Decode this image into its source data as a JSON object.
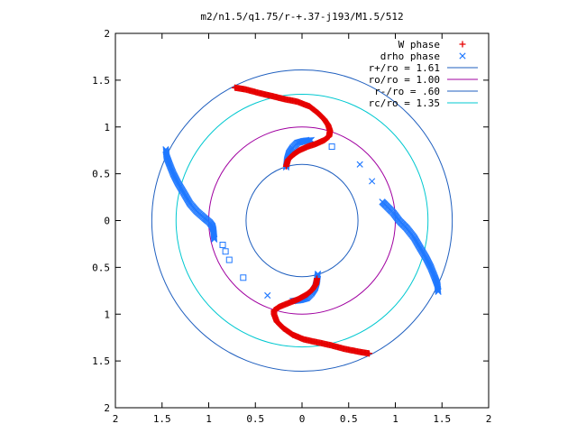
{
  "chart_data": {
    "type": "scatter",
    "title": "m2/n1.5/q1.75/r-+.37-j193/M1.5/512",
    "xlim": [
      -2,
      2
    ],
    "ylim": [
      -2,
      2
    ],
    "xticks": [
      {
        "v": -2,
        "label": "2"
      },
      {
        "v": -1.5,
        "label": "1.5"
      },
      {
        "v": -1,
        "label": "1"
      },
      {
        "v": -0.5,
        "label": "0.5"
      },
      {
        "v": 0,
        "label": "0"
      },
      {
        "v": 0.5,
        "label": "0.5"
      },
      {
        "v": 1,
        "label": "1"
      },
      {
        "v": 1.5,
        "label": "1.5"
      },
      {
        "v": 2,
        "label": "2"
      }
    ],
    "yticks": [
      {
        "v": 2,
        "label": "2"
      },
      {
        "v": 1.5,
        "label": "1.5"
      },
      {
        "v": 1,
        "label": "1"
      },
      {
        "v": 0.5,
        "label": "0.5"
      },
      {
        "v": 0,
        "label": "0"
      },
      {
        "v": -0.5,
        "label": "0.5"
      },
      {
        "v": -1,
        "label": "1"
      },
      {
        "v": -1.5,
        "label": "1.5"
      },
      {
        "v": -2,
        "label": "2"
      }
    ],
    "grid": false,
    "legend_position": "top-right",
    "circles": [
      {
        "label": "r+/ro = 1.61",
        "radius": 1.61,
        "color": "#1f5fbf"
      },
      {
        "label": "ro/ro = 1.00",
        "radius": 1.0,
        "color": "#a000a0"
      },
      {
        "label": "r-/ro = .60",
        "radius": 0.6,
        "color": "#1f5fbf"
      },
      {
        "label": "rc/ro = 1.35",
        "radius": 1.35,
        "color": "#00c8d0"
      }
    ],
    "series": [
      {
        "name": "W phase",
        "marker": "plus",
        "color": "#e60000",
        "arms": [
          [
            [
              -0.72,
              1.42
            ],
            [
              -0.6,
              1.4
            ],
            [
              -0.45,
              1.36
            ],
            [
              -0.32,
              1.33
            ],
            [
              -0.2,
              1.3
            ],
            [
              -0.05,
              1.27
            ],
            [
              0.08,
              1.22
            ],
            [
              0.17,
              1.15
            ],
            [
              0.24,
              1.08
            ],
            [
              0.28,
              1.02
            ],
            [
              0.3,
              0.96
            ],
            [
              0.29,
              0.9
            ],
            [
              0.24,
              0.86
            ],
            [
              0.15,
              0.82
            ],
            [
              0.06,
              0.79
            ],
            [
              -0.03,
              0.75
            ],
            [
              -0.1,
              0.7
            ],
            [
              -0.15,
              0.65
            ],
            [
              -0.17,
              0.58
            ]
          ],
          [
            [
              0.72,
              -1.42
            ],
            [
              0.6,
              -1.4
            ],
            [
              0.45,
              -1.37
            ],
            [
              0.3,
              -1.33
            ],
            [
              0.16,
              -1.3
            ],
            [
              0.02,
              -1.27
            ],
            [
              -0.1,
              -1.22
            ],
            [
              -0.2,
              -1.15
            ],
            [
              -0.27,
              -1.08
            ],
            [
              -0.3,
              -1.0
            ],
            [
              -0.3,
              -0.96
            ],
            [
              -0.24,
              -0.92
            ],
            [
              -0.14,
              -0.88
            ],
            [
              -0.04,
              -0.84
            ],
            [
              0.05,
              -0.79
            ],
            [
              0.11,
              -0.74
            ],
            [
              0.15,
              -0.68
            ],
            [
              0.16,
              -0.62
            ]
          ]
        ]
      },
      {
        "name": "drho phase",
        "marker": "x",
        "color": "#1f78ff",
        "arms": [
          [
            [
              -1.46,
              0.76
            ],
            [
              -1.45,
              0.68
            ],
            [
              -1.42,
              0.6
            ],
            [
              -1.38,
              0.5
            ],
            [
              -1.33,
              0.4
            ],
            [
              -1.27,
              0.3
            ],
            [
              -1.2,
              0.18
            ],
            [
              -1.13,
              0.1
            ],
            [
              -1.05,
              0.03
            ],
            [
              -0.99,
              -0.02
            ],
            [
              -0.96,
              -0.06
            ],
            [
              -0.95,
              -0.1
            ],
            [
              -0.94,
              -0.2
            ]
          ],
          [
            [
              1.46,
              -0.76
            ],
            [
              1.45,
              -0.68
            ],
            [
              1.42,
              -0.6
            ],
            [
              1.38,
              -0.5
            ],
            [
              1.33,
              -0.4
            ],
            [
              1.27,
              -0.3
            ],
            [
              1.2,
              -0.18
            ],
            [
              1.12,
              -0.08
            ],
            [
              1.04,
              0.0
            ],
            [
              0.98,
              0.08
            ],
            [
              0.93,
              0.13
            ],
            [
              0.89,
              0.17
            ],
            [
              0.86,
              0.2
            ]
          ],
          [
            [
              -0.17,
              0.57
            ],
            [
              -0.16,
              0.65
            ],
            [
              -0.14,
              0.72
            ],
            [
              -0.1,
              0.78
            ],
            [
              -0.05,
              0.83
            ],
            [
              0.02,
              0.85
            ],
            [
              0.1,
              0.86
            ]
          ],
          [
            [
              0.17,
              -0.57
            ],
            [
              0.16,
              -0.65
            ],
            [
              0.14,
              -0.72
            ],
            [
              0.1,
              -0.78
            ],
            [
              0.05,
              -0.83
            ],
            [
              -0.02,
              -0.85
            ],
            [
              -0.1,
              -0.86
            ]
          ]
        ],
        "isolated": [
          [
            0.62,
            0.6
          ],
          [
            0.75,
            0.42
          ],
          [
            -0.37,
            -0.8
          ]
        ]
      },
      {
        "name": "squares",
        "marker": "square",
        "color": "#1f78ff",
        "points": [
          [
            -0.85,
            -0.26
          ],
          [
            -0.82,
            -0.33
          ],
          [
            -0.78,
            -0.42
          ],
          [
            -0.63,
            -0.61
          ],
          [
            0.32,
            0.79
          ]
        ]
      }
    ]
  }
}
